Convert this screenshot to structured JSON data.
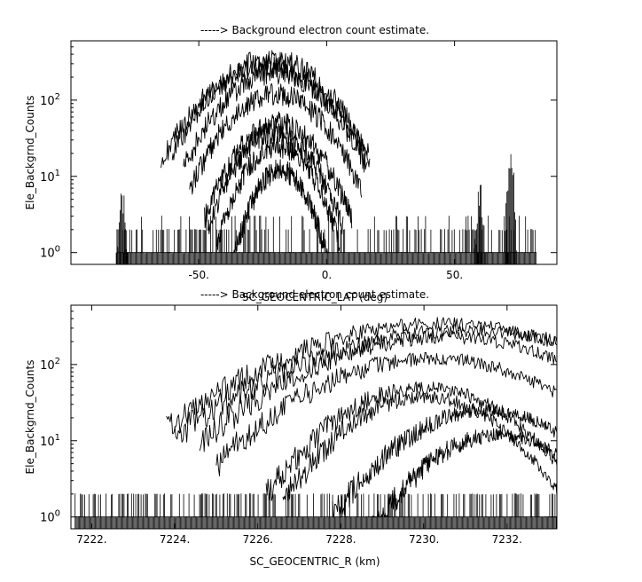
{
  "chart_data": [
    {
      "type": "line",
      "title": "-----> Background electron count estimate.",
      "xlabel": "SC_GEOCENTRIC_LAT (deg)",
      "ylabel": "Ele_Backgrnd_Counts",
      "xlim": [
        -100,
        90
      ],
      "ylim": [
        0.7,
        600
      ],
      "yscale": "log",
      "grid": false,
      "x_ticks": [
        -50,
        0,
        50
      ],
      "x_tick_labels": [
        "-50.",
        "0.",
        "50."
      ],
      "y_ticks": [
        1,
        10,
        100
      ],
      "y_tick_bases": [
        "10",
        "10",
        "10"
      ],
      "y_tick_exps": [
        "0",
        "1",
        "2"
      ],
      "noise_floor": {
        "x_range": [
          -82,
          82
        ],
        "count_levels": [
          1,
          2,
          3
        ]
      },
      "background_bursts": [
        {
          "x": -80,
          "peak": 6
        },
        {
          "x": 60,
          "peak": 7
        },
        {
          "x": 72,
          "peak": 18
        }
      ],
      "series": [
        {
          "center": -22,
          "width": 16,
          "peak": 340
        },
        {
          "center": -24,
          "width": 17,
          "peak": 280
        },
        {
          "center": -20,
          "width": 15,
          "peak": 230
        },
        {
          "center": -20,
          "width": 14,
          "peak": 120
        },
        {
          "center": -19,
          "width": 12,
          "peak": 50
        },
        {
          "center": -20,
          "width": 11,
          "peak": 38
        },
        {
          "center": -19,
          "width": 10,
          "peak": 25
        },
        {
          "center": -18,
          "width": 8,
          "peak": 12
        }
      ]
    },
    {
      "type": "line",
      "title": "-----> Background electron count estimate.",
      "xlabel": "SC_GEOCENTRIC_R (km)",
      "ylabel": "Ele_Backgrnd_Counts",
      "xlim": [
        7221.5,
        7233.2
      ],
      "ylim": [
        0.7,
        600
      ],
      "yscale": "log",
      "grid": false,
      "x_ticks": [
        7222,
        7224,
        7226,
        7228,
        7230,
        7232
      ],
      "x_tick_labels": [
        "7222.",
        "7224.",
        "7226.",
        "7228.",
        "7230.",
        "7232."
      ],
      "y_ticks": [
        1,
        10,
        100
      ],
      "y_tick_bases": [
        "10",
        "10",
        "10"
      ],
      "y_tick_exps": [
        "0",
        "1",
        "2"
      ],
      "noise_floor": {
        "x_range": [
          7221.6,
          7233.2
        ],
        "count_levels": [
          1,
          2
        ]
      },
      "series": [
        {
          "start": 7223.8,
          "peak_x": 7230.4,
          "peak": 340
        },
        {
          "start": 7224.0,
          "peak_x": 7231.0,
          "peak": 280
        },
        {
          "start": 7224.6,
          "peak_x": 7230.5,
          "peak": 230
        },
        {
          "start": 7225.0,
          "peak_x": 7230.2,
          "peak": 120
        },
        {
          "start": 7226.2,
          "peak_x": 7230.0,
          "peak": 50
        },
        {
          "start": 7226.6,
          "peak_x": 7230.0,
          "peak": 38
        },
        {
          "start": 7227.8,
          "peak_x": 7231.5,
          "peak": 25
        },
        {
          "start": 7228.6,
          "peak_x": 7231.8,
          "peak": 12
        }
      ]
    }
  ]
}
